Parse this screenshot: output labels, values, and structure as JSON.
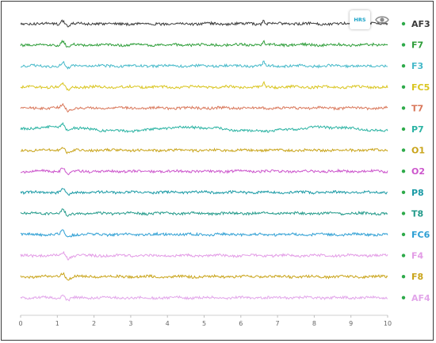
{
  "toolbar": {
    "hrs_label": "HRS",
    "visibility_icon": "eye-icon"
  },
  "chart_data": {
    "type": "line",
    "xlabel": "",
    "ylabel": "",
    "xlim": [
      0,
      10
    ],
    "xticks": [
      "0",
      "1",
      "2",
      "3",
      "4",
      "5",
      "6",
      "7",
      "8",
      "9",
      "10"
    ],
    "grid": false,
    "legend": "right",
    "series": [
      {
        "name": "AF3",
        "color": "#3a3a3a",
        "legend_color": "#2eaa4a"
      },
      {
        "name": "F7",
        "color": "#2f9e3a",
        "legend_color": "#2eaa4a"
      },
      {
        "name": "F3",
        "color": "#45b9c9",
        "legend_color": "#2eaa4a"
      },
      {
        "name": "FC5",
        "color": "#d9c51f",
        "legend_color": "#2eaa4a"
      },
      {
        "name": "T7",
        "color": "#d9775a",
        "legend_color": "#2eaa4a"
      },
      {
        "name": "P7",
        "color": "#2bb3a3",
        "legend_color": "#2eaa4a"
      },
      {
        "name": "O1",
        "color": "#c9a41a",
        "legend_color": "#2eaa4a"
      },
      {
        "name": "O2",
        "color": "#cc55cc",
        "legend_color": "#2eaa4a"
      },
      {
        "name": "P8",
        "color": "#1a9aa5",
        "legend_color": "#2eaa4a"
      },
      {
        "name": "T8",
        "color": "#239a8a",
        "legend_color": "#2eaa4a"
      },
      {
        "name": "FC6",
        "color": "#2e9fd4",
        "legend_color": "#2eaa4a"
      },
      {
        "name": "F4",
        "color": "#e39ce6",
        "legend_color": "#2eaa4a"
      },
      {
        "name": "F8",
        "color": "#c9a41a",
        "legend_color": "#2eaa4a"
      },
      {
        "name": "AF4",
        "color": "#e2a6ea",
        "legend_color": "#2eaa4a"
      }
    ]
  }
}
